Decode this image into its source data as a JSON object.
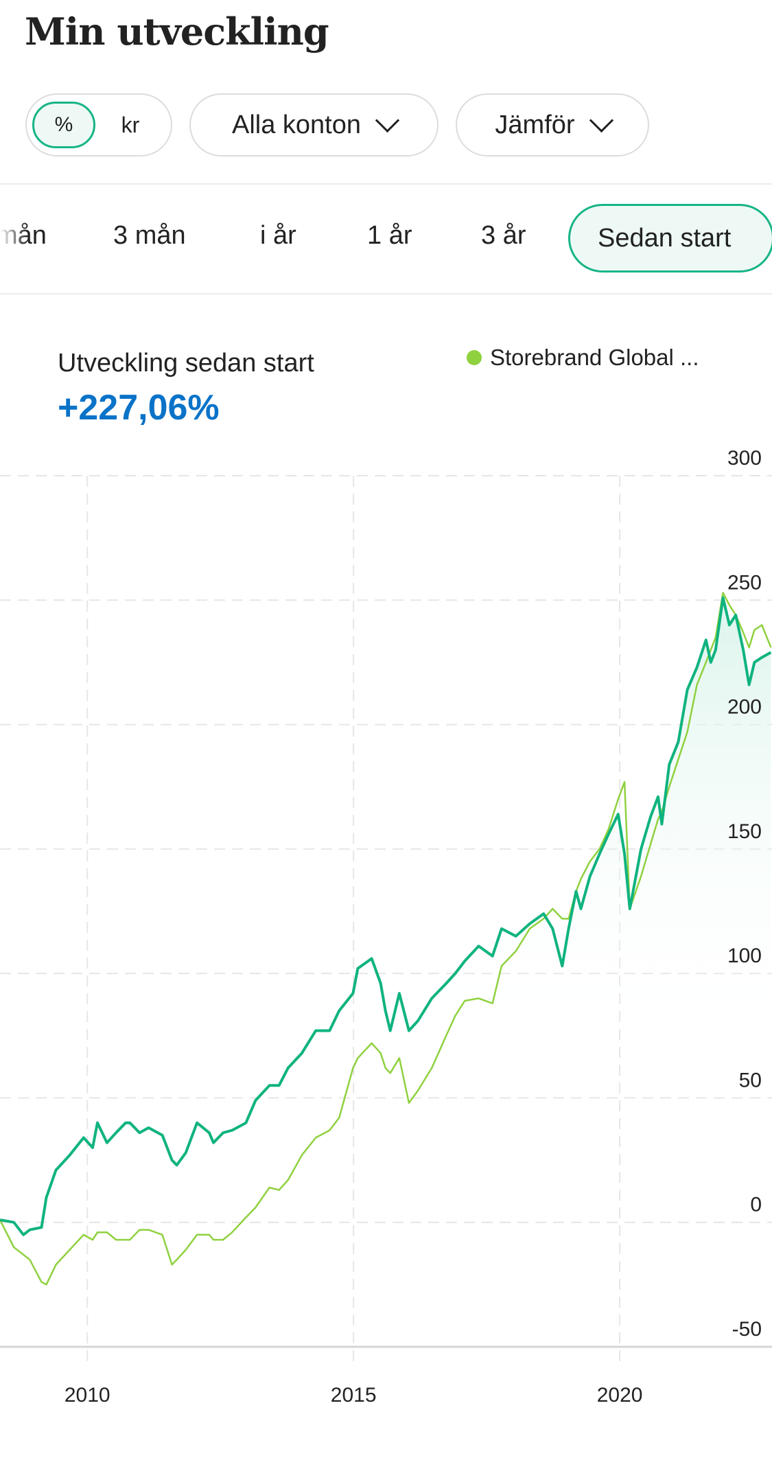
{
  "header": {
    "title": "Min utveckling"
  },
  "filters": {
    "unit_toggle": {
      "options": [
        "%",
        "kr"
      ],
      "selected": "%"
    },
    "accounts_dropdown": "Alla konton",
    "compare_dropdown": "Jämför"
  },
  "period_tabs": {
    "items": [
      "mån",
      "3 mån",
      "i år",
      "1 år",
      "3 år",
      "Sedan start"
    ],
    "selected": "Sedan start"
  },
  "summary": {
    "label": "Utveckling sedan start",
    "value": "+227,06%"
  },
  "colors": {
    "accent": "#17b486",
    "portfolio_line": "#0fb37f",
    "benchmark_line": "#8fd13f",
    "value_text": "#0a73c8"
  },
  "chart_data": {
    "type": "line",
    "legend": [
      {
        "name": "Storebrand Global ...",
        "color": "#8fd13f"
      }
    ],
    "legend_position": "top-right",
    "ylim": [
      -50,
      300
    ],
    "yticks": [
      "300",
      "250",
      "200",
      "150",
      "100",
      "50",
      "0",
      "-50"
    ],
    "ytick_values": [
      300,
      250,
      200,
      150,
      100,
      50,
      0,
      -50
    ],
    "xlim": [
      2008.36,
      2022.86
    ],
    "xticks": [
      "2010",
      "2015",
      "2020"
    ],
    "xtick_values": [
      2010,
      2015,
      2020
    ],
    "grid": true,
    "x": [
      2008.36,
      2008.62,
      2008.8,
      2008.92,
      2009.14,
      2009.23,
      2009.41,
      2009.67,
      2009.93,
      2010.1,
      2010.19,
      2010.37,
      2010.54,
      2010.72,
      2010.8,
      2010.98,
      2011.15,
      2011.41,
      2011.59,
      2011.68,
      2011.85,
      2012.06,
      2012.29,
      2012.37,
      2012.55,
      2012.72,
      2012.98,
      2013.16,
      2013.42,
      2013.6,
      2013.77,
      2014.03,
      2014.29,
      2014.55,
      2014.73,
      2014.99,
      2015.08,
      2015.34,
      2015.51,
      2015.6,
      2015.69,
      2015.86,
      2016.04,
      2016.21,
      2016.47,
      2016.74,
      2016.91,
      2017.09,
      2017.35,
      2017.61,
      2017.78,
      2018.05,
      2018.31,
      2018.57,
      2018.74,
      2018.92,
      2019.04,
      2019.18,
      2019.27,
      2019.44,
      2019.62,
      2019.79,
      2019.97,
      2020.09,
      2020.19,
      2020.4,
      2020.58,
      2020.72,
      2020.79,
      2020.93,
      2021.1,
      2021.27,
      2021.45,
      2021.62,
      2021.71,
      2021.8,
      2021.94,
      2022.06,
      2022.18,
      2022.32,
      2022.43,
      2022.53,
      2022.67,
      2022.84
    ],
    "series": [
      {
        "name": "Min utveckling",
        "color": "#0fb37f",
        "values": [
          1,
          0,
          -5,
          -3,
          -2,
          10,
          21,
          27,
          34,
          30,
          40,
          32,
          36,
          40,
          40,
          36,
          38,
          35,
          25,
          23,
          28,
          40,
          36,
          32,
          36,
          37,
          40,
          49,
          55,
          55,
          62,
          68,
          77,
          77,
          85,
          92,
          102,
          106,
          96,
          85,
          77,
          92,
          77,
          81,
          90,
          96,
          100,
          105,
          111,
          107,
          118,
          115,
          120,
          124,
          118,
          103,
          118,
          133,
          126,
          139,
          148,
          156,
          164,
          148,
          126,
          150,
          163,
          171,
          160,
          184,
          193,
          214,
          223,
          234,
          225,
          230,
          251,
          240,
          244,
          230,
          216,
          225,
          227,
          229
        ]
      },
      {
        "name": "Storebrand Global ...",
        "color": "#8fd13f",
        "values": [
          1,
          -10,
          -13,
          -15,
          -24,
          -25,
          -17,
          -11,
          -5,
          -7,
          -4,
          -4,
          -7,
          -7,
          -7,
          -3,
          -3,
          -5,
          -17,
          -15,
          -11,
          -5,
          -5,
          -7,
          -7,
          -4,
          2,
          6,
          14,
          13,
          17,
          27,
          34,
          37,
          42,
          62,
          66,
          72,
          68,
          62,
          60,
          66,
          48,
          53,
          62,
          75,
          83,
          89,
          90,
          88,
          103,
          109,
          118,
          122,
          126,
          122,
          122,
          133,
          138,
          145,
          150,
          158,
          170,
          177,
          126,
          139,
          152,
          162,
          165,
          175,
          186,
          197,
          216,
          225,
          230,
          235,
          253,
          248,
          244,
          237,
          231,
          238,
          240,
          231
        ]
      }
    ]
  }
}
